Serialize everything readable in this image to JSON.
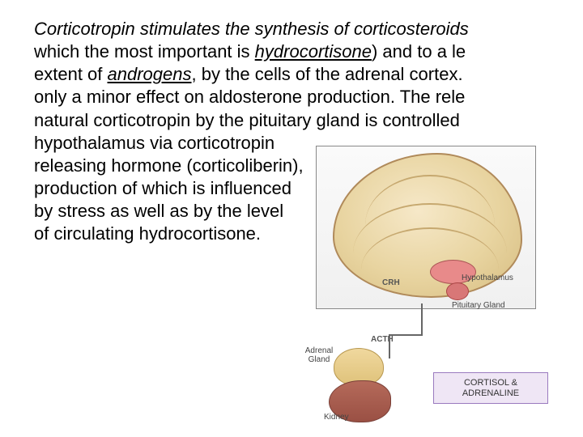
{
  "paragraph": {
    "s1": "Corticotropin stimulates the synthesis of corticosteroids",
    "s2": "which the most important is ",
    "s2u": "hydrocortisone",
    "s2b": ") and to a le",
    "s3a": "extent of ",
    "s3u": "androgens",
    "s3b": ", by the cells of the adrenal cortex. ",
    "s4": "only a minor effect on aldosterone production. The rele",
    "s5": "natural corticotropin by the pituitary gland is controlled ",
    "s6": "hypothalamus via corticotropin",
    "s7": "releasing hormone (corticoliberin),",
    "s8": "production of which is influenced",
    "s9": "by stress as well as by the level",
    "s10": "of circulating hydrocortisone."
  },
  "diagram": {
    "crh": "CRH",
    "hypothalamus": "Hypothalamus",
    "pituitary": "Pituitary Gland",
    "acth": "ACTH",
    "adrenal": "Adrenal Gland",
    "kidney": "Kidney",
    "result": "CORTISOL & ADRENALINE"
  },
  "colors": {
    "text": "#000000",
    "brain_fill": "#e8d4a0",
    "brain_border": "#b08a5a",
    "hypothalamus_fill": "#e88a8a",
    "adrenal_fill": "#dfc27a",
    "kidney_fill": "#9a5044",
    "result_bg": "#efe6f5",
    "result_border": "#9a7abf"
  },
  "typography": {
    "body_fontsize": 22,
    "label_fontsize": 10,
    "result_fontsize": 11
  }
}
